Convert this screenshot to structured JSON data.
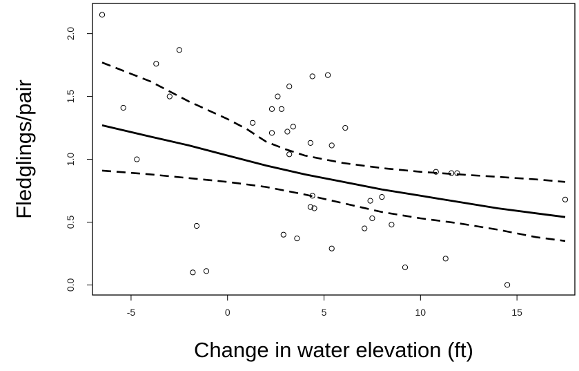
{
  "chart_data": {
    "type": "scatter",
    "title": "",
    "xlabel": "Change in water elevation (ft)",
    "ylabel": "Fledglings/pair",
    "xlim": [
      -7.0,
      18.0
    ],
    "ylim": [
      -0.08,
      2.24
    ],
    "x_ticks": [
      -5,
      0,
      5,
      10,
      15
    ],
    "x_tick_labels": [
      "-5",
      "0",
      "5",
      "10",
      "15"
    ],
    "y_ticks": [
      0.0,
      0.5,
      1.0,
      1.5,
      2.0
    ],
    "y_tick_labels": [
      "0.0",
      "0.5",
      "1.0",
      "1.5",
      "2.0"
    ],
    "grid": false,
    "legend": "none",
    "colors": {
      "points": "#000000",
      "fit": "#000000",
      "ci": "#000000",
      "frame": "#000000"
    },
    "points": [
      {
        "x": -6.5,
        "y": 2.15
      },
      {
        "x": -5.4,
        "y": 1.41
      },
      {
        "x": -4.7,
        "y": 1.0
      },
      {
        "x": -3.7,
        "y": 1.76
      },
      {
        "x": -3.0,
        "y": 1.5
      },
      {
        "x": -2.5,
        "y": 1.87
      },
      {
        "x": -1.6,
        "y": 0.47
      },
      {
        "x": -1.8,
        "y": 0.1
      },
      {
        "x": -1.1,
        "y": 0.11
      },
      {
        "x": 1.3,
        "y": 1.29
      },
      {
        "x": 2.3,
        "y": 1.4
      },
      {
        "x": 2.3,
        "y": 1.21
      },
      {
        "x": 2.6,
        "y": 1.5
      },
      {
        "x": 2.8,
        "y": 1.4
      },
      {
        "x": 2.9,
        "y": 0.4
      },
      {
        "x": 3.1,
        "y": 1.22
      },
      {
        "x": 3.2,
        "y": 1.04
      },
      {
        "x": 3.2,
        "y": 1.58
      },
      {
        "x": 3.4,
        "y": 1.26
      },
      {
        "x": 3.6,
        "y": 0.37
      },
      {
        "x": 4.3,
        "y": 1.13
      },
      {
        "x": 4.3,
        "y": 0.62
      },
      {
        "x": 4.4,
        "y": 1.66
      },
      {
        "x": 4.5,
        "y": 0.61
      },
      {
        "x": 4.4,
        "y": 0.71
      },
      {
        "x": 5.2,
        "y": 1.67
      },
      {
        "x": 5.4,
        "y": 1.11
      },
      {
        "x": 5.4,
        "y": 0.29
      },
      {
        "x": 6.1,
        "y": 1.25
      },
      {
        "x": 7.1,
        "y": 0.45
      },
      {
        "x": 7.4,
        "y": 0.67
      },
      {
        "x": 7.5,
        "y": 0.53
      },
      {
        "x": 8.0,
        "y": 0.7
      },
      {
        "x": 8.5,
        "y": 0.48
      },
      {
        "x": 9.2,
        "y": 0.14
      },
      {
        "x": 10.8,
        "y": 0.9
      },
      {
        "x": 11.3,
        "y": 0.21
      },
      {
        "x": 11.6,
        "y": 0.89
      },
      {
        "x": 11.9,
        "y": 0.89
      },
      {
        "x": 14.5,
        "y": 0.0
      },
      {
        "x": 17.5,
        "y": 0.68
      }
    ],
    "fit_line": {
      "x": [
        -6.5,
        -4,
        -2,
        0,
        2,
        4,
        6,
        8,
        10,
        12,
        14,
        16,
        17.5
      ],
      "y": [
        1.27,
        1.18,
        1.11,
        1.03,
        0.95,
        0.88,
        0.82,
        0.76,
        0.71,
        0.66,
        0.61,
        0.57,
        0.54
      ]
    },
    "ci_upper": {
      "x": [
        -6.5,
        -4,
        -2,
        0,
        1,
        2,
        3,
        4,
        5,
        6,
        8,
        10,
        12,
        14,
        16,
        17.5
      ],
      "y": [
        1.77,
        1.62,
        1.46,
        1.32,
        1.24,
        1.14,
        1.08,
        1.03,
        1.0,
        0.97,
        0.93,
        0.9,
        0.88,
        0.86,
        0.84,
        0.82
      ]
    },
    "ci_lower": {
      "x": [
        -6.5,
        -4,
        -2,
        0,
        2,
        4,
        6,
        8,
        10,
        12,
        14,
        16,
        17.5
      ],
      "y": [
        0.91,
        0.88,
        0.85,
        0.82,
        0.78,
        0.72,
        0.65,
        0.58,
        0.53,
        0.49,
        0.44,
        0.38,
        0.35
      ]
    }
  }
}
